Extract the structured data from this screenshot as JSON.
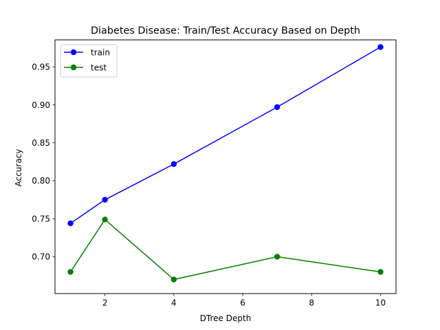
{
  "chart_data": {
    "type": "line",
    "title": "Diabetes Disease: Train/Test Accuracy Based on Depth",
    "xlabel": "DTree Depth",
    "ylabel": "Accuracy",
    "x": [
      1,
      2,
      4,
      7,
      10
    ],
    "xlim": [
      0.55,
      10.45
    ],
    "ylim": [
      0.6515,
      0.9855
    ],
    "xticks": [
      2,
      4,
      6,
      8,
      10
    ],
    "yticks": [
      0.7,
      0.75,
      0.8,
      0.85,
      0.9,
      0.95
    ],
    "ytick_labels": [
      "0.70",
      "0.75",
      "0.80",
      "0.85",
      "0.90",
      "0.95"
    ],
    "legend": "upper-left",
    "grid": false,
    "series": [
      {
        "name": "train",
        "color": "#0000ff",
        "values": [
          0.744,
          0.775,
          0.822,
          0.897,
          0.976
        ]
      },
      {
        "name": "test",
        "color": "#008000",
        "values": [
          0.68,
          0.749,
          0.67,
          0.7,
          0.68
        ]
      }
    ]
  }
}
